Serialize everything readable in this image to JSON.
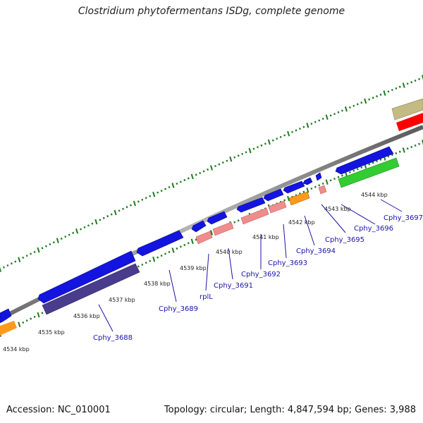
{
  "title": "Clostridium phytofermentans ISDg, complete genome",
  "footer": {
    "accession": "Accession: NC_010001",
    "summary": "Topology: circular; Length: 4,847,594 bp; Genes: 3,988"
  },
  "colors": {
    "backbone": "#8c8c8c",
    "tick": "#1f7a1f",
    "gene_forward": "#1414e0",
    "gene_reverse": "#4a3c8c",
    "orange": "#ff9a1a",
    "pink": "#f08c8c",
    "green": "#33cc33",
    "red": "#ff0000",
    "khaki": "#c4bb84",
    "label": "#1a14a8"
  },
  "scale_labels": [
    "4534 kbp",
    "4535 kbp",
    "4536 kbp",
    "4537 kbp",
    "4538 kbp",
    "4539 kbp",
    "4540 kbp",
    "4541 kbp",
    "4542 kbp",
    "4543 kbp",
    "4544 kbp"
  ],
  "gene_labels": [
    "Cphy_3688",
    "Cphy_3689",
    "rplL",
    "Cphy_3691",
    "Cphy_3692",
    "Cphy_3693",
    "Cphy_3694",
    "Cphy_3695",
    "Cphy_3696",
    "Cphy_3697"
  ]
}
